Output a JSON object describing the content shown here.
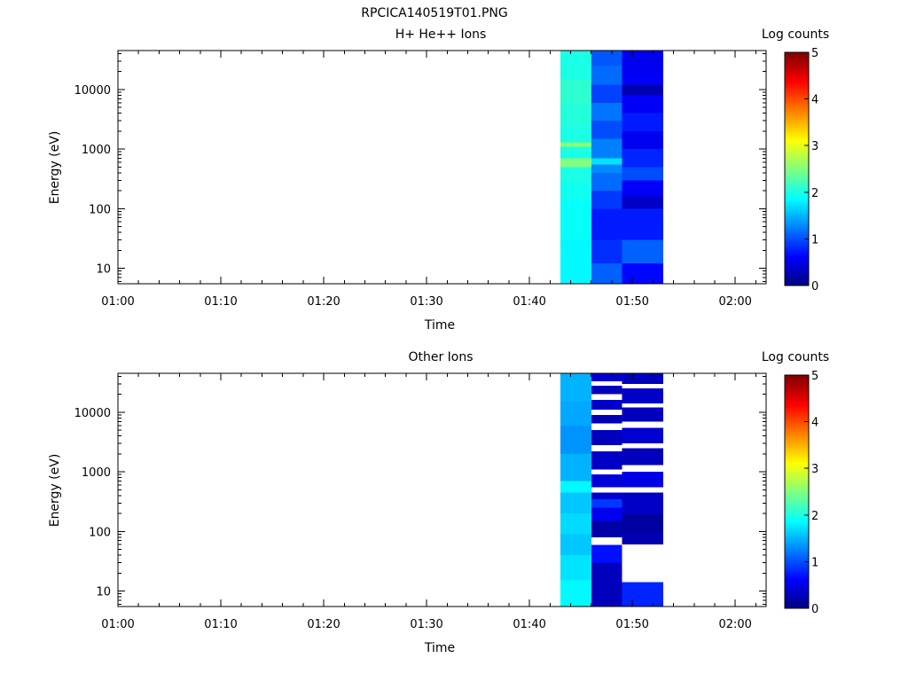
{
  "figure_title": "RPCICA140519T01.PNG",
  "chart_data": [
    {
      "type": "heatmap",
      "title": "H+ He++ Ions",
      "xlabel": "Time",
      "ylabel": "Energy (eV)",
      "x_ticks": [
        "01:00",
        "01:10",
        "01:20",
        "01:30",
        "01:40",
        "01:50",
        "02:00"
      ],
      "xlim": [
        "01:00",
        "02:03"
      ],
      "y_scale": "log",
      "y_ticks": [
        "10",
        "100",
        "1000",
        "10000"
      ],
      "ylim": [
        5.5,
        45000
      ],
      "colorbar": {
        "label": "Log counts",
        "range": [
          0,
          5
        ],
        "ticks": [
          "0",
          "1",
          "2",
          "3",
          "4",
          "5"
        ],
        "colormap": "jet"
      },
      "columns": [
        {
          "start": "01:43",
          "end": "01:46",
          "bins": [
            {
              "e_low": 5.5,
              "e_high": 13,
              "value": 1.85
            },
            {
              "e_low": 13,
              "e_high": 30,
              "value": 1.85
            },
            {
              "e_low": 30,
              "e_high": 65,
              "value": 1.9
            },
            {
              "e_low": 65,
              "e_high": 140,
              "value": 1.9
            },
            {
              "e_low": 140,
              "e_high": 280,
              "value": 1.95
            },
            {
              "e_low": 280,
              "e_high": 500,
              "value": 2.0
            },
            {
              "e_low": 500,
              "e_high": 700,
              "value": 2.5
            },
            {
              "e_low": 700,
              "e_high": 1100,
              "value": 2.0
            },
            {
              "e_low": 1100,
              "e_high": 1300,
              "value": 2.55
            },
            {
              "e_low": 1300,
              "e_high": 2500,
              "value": 2.0
            },
            {
              "e_low": 2500,
              "e_high": 6000,
              "value": 2.05
            },
            {
              "e_low": 6000,
              "e_high": 15000,
              "value": 2.1
            },
            {
              "e_low": 15000,
              "e_high": 45000,
              "value": 2.0
            }
          ]
        },
        {
          "start": "01:46",
          "end": "01:49",
          "bins": [
            {
              "e_low": 5.5,
              "e_high": 12,
              "value": 1.1
            },
            {
              "e_low": 12,
              "e_high": 30,
              "value": 0.85
            },
            {
              "e_low": 30,
              "e_high": 100,
              "value": 0.75
            },
            {
              "e_low": 100,
              "e_high": 200,
              "value": 0.9
            },
            {
              "e_low": 200,
              "e_high": 400,
              "value": 1.15
            },
            {
              "e_low": 400,
              "e_high": 550,
              "value": 1.3
            },
            {
              "e_low": 550,
              "e_high": 700,
              "value": 1.75
            },
            {
              "e_low": 700,
              "e_high": 1500,
              "value": 1.25
            },
            {
              "e_low": 1500,
              "e_high": 3000,
              "value": 1.0
            },
            {
              "e_low": 3000,
              "e_high": 6000,
              "value": 1.2
            },
            {
              "e_low": 6000,
              "e_high": 12000,
              "value": 0.95
            },
            {
              "e_low": 12000,
              "e_high": 25000,
              "value": 1.15
            },
            {
              "e_low": 25000,
              "e_high": 45000,
              "value": 1.05
            }
          ]
        },
        {
          "start": "01:49",
          "end": "01:53",
          "bins": [
            {
              "e_low": 5.5,
              "e_high": 12,
              "value": 0.65
            },
            {
              "e_low": 12,
              "e_high": 30,
              "value": 1.1
            },
            {
              "e_low": 30,
              "e_high": 100,
              "value": 0.75
            },
            {
              "e_low": 100,
              "e_high": 160,
              "value": 0.35
            },
            {
              "e_low": 160,
              "e_high": 300,
              "value": 0.6
            },
            {
              "e_low": 300,
              "e_high": 500,
              "value": 1.0
            },
            {
              "e_low": 500,
              "e_high": 1000,
              "value": 0.8
            },
            {
              "e_low": 1000,
              "e_high": 2000,
              "value": 0.55
            },
            {
              "e_low": 2000,
              "e_high": 4000,
              "value": 0.75
            },
            {
              "e_low": 4000,
              "e_high": 8000,
              "value": 0.6
            },
            {
              "e_low": 8000,
              "e_high": 12000,
              "value": 0.25
            },
            {
              "e_low": 12000,
              "e_high": 20000,
              "value": 0.6
            },
            {
              "e_low": 20000,
              "e_high": 45000,
              "value": 0.55
            }
          ]
        }
      ]
    },
    {
      "type": "heatmap",
      "title": "Other Ions",
      "xlabel": "Time",
      "ylabel": "Energy (eV)",
      "x_ticks": [
        "01:00",
        "01:10",
        "01:20",
        "01:30",
        "01:40",
        "01:50",
        "02:00"
      ],
      "xlim": [
        "01:00",
        "02:03"
      ],
      "y_scale": "log",
      "y_ticks": [
        "10",
        "100",
        "1000",
        "10000"
      ],
      "ylim": [
        5.5,
        45000
      ],
      "colorbar": {
        "label": "Log counts",
        "range": [
          0,
          5
        ],
        "ticks": [
          "0",
          "1",
          "2",
          "3",
          "4",
          "5"
        ],
        "colormap": "jet"
      },
      "columns": [
        {
          "start": "01:43",
          "end": "01:46",
          "bins": [
            {
              "e_low": 5.5,
              "e_high": 15,
              "value": 1.85
            },
            {
              "e_low": 15,
              "e_high": 40,
              "value": 1.75
            },
            {
              "e_low": 40,
              "e_high": 90,
              "value": 1.6
            },
            {
              "e_low": 90,
              "e_high": 200,
              "value": 1.7
            },
            {
              "e_low": 200,
              "e_high": 450,
              "value": 1.6
            },
            {
              "e_low": 450,
              "e_high": 700,
              "value": 1.85
            },
            {
              "e_low": 700,
              "e_high": 2000,
              "value": 1.5
            },
            {
              "e_low": 2000,
              "e_high": 6000,
              "value": 1.35
            },
            {
              "e_low": 6000,
              "e_high": 15000,
              "value": 1.45
            },
            {
              "e_low": 15000,
              "e_high": 45000,
              "value": 1.5
            }
          ]
        },
        {
          "start": "01:46",
          "end": "01:49",
          "bins": [
            {
              "e_low": 5.5,
              "e_high": 30,
              "value": 0.3
            },
            {
              "e_low": 30,
              "e_high": 60,
              "value": 0.7
            },
            {
              "e_low": 60,
              "e_high": 80,
              "value": null
            },
            {
              "e_low": 80,
              "e_high": 150,
              "value": 0.2
            },
            {
              "e_low": 150,
              "e_high": 250,
              "value": 0.55
            },
            {
              "e_low": 250,
              "e_high": 350,
              "value": 0.9
            },
            {
              "e_low": 350,
              "e_high": 450,
              "value": 0.4
            },
            {
              "e_low": 450,
              "e_high": 550,
              "value": null
            },
            {
              "e_low": 550,
              "e_high": 900,
              "value": 0.45
            },
            {
              "e_low": 900,
              "e_high": 1100,
              "value": null
            },
            {
              "e_low": 1100,
              "e_high": 2200,
              "value": 0.35
            },
            {
              "e_low": 2200,
              "e_high": 2800,
              "value": null
            },
            {
              "e_low": 2800,
              "e_high": 5000,
              "value": 0.3
            },
            {
              "e_low": 5000,
              "e_high": 6500,
              "value": null
            },
            {
              "e_low": 6500,
              "e_high": 9000,
              "value": 0.25
            },
            {
              "e_low": 9000,
              "e_high": 11000,
              "value": null
            },
            {
              "e_low": 11000,
              "e_high": 16000,
              "value": 0.35
            },
            {
              "e_low": 16000,
              "e_high": 20000,
              "value": null
            },
            {
              "e_low": 20000,
              "e_high": 28000,
              "value": 0.3
            },
            {
              "e_low": 28000,
              "e_high": 33000,
              "value": null
            },
            {
              "e_low": 33000,
              "e_high": 45000,
              "value": 0.4
            }
          ]
        },
        {
          "start": "01:49",
          "end": "01:53",
          "bins": [
            {
              "e_low": 5.5,
              "e_high": 14,
              "value": 0.8
            },
            {
              "e_low": 14,
              "e_high": 60,
              "value": null
            },
            {
              "e_low": 60,
              "e_high": 100,
              "value": 0.25
            },
            {
              "e_low": 100,
              "e_high": 200,
              "value": 0.15
            },
            {
              "e_low": 200,
              "e_high": 450,
              "value": 0.35
            },
            {
              "e_low": 450,
              "e_high": 550,
              "value": null
            },
            {
              "e_low": 550,
              "e_high": 1000,
              "value": 0.5
            },
            {
              "e_low": 1000,
              "e_high": 1300,
              "value": null
            },
            {
              "e_low": 1300,
              "e_high": 2500,
              "value": 0.3
            },
            {
              "e_low": 2500,
              "e_high": 3000,
              "value": null
            },
            {
              "e_low": 3000,
              "e_high": 5500,
              "value": 0.4
            },
            {
              "e_low": 5500,
              "e_high": 7000,
              "value": null
            },
            {
              "e_low": 7000,
              "e_high": 12000,
              "value": 0.3
            },
            {
              "e_low": 12000,
              "e_high": 14000,
              "value": null
            },
            {
              "e_low": 14000,
              "e_high": 25000,
              "value": 0.35
            },
            {
              "e_low": 25000,
              "e_high": 30000,
              "value": null
            },
            {
              "e_low": 30000,
              "e_high": 45000,
              "value": 0.3
            }
          ]
        }
      ]
    }
  ]
}
